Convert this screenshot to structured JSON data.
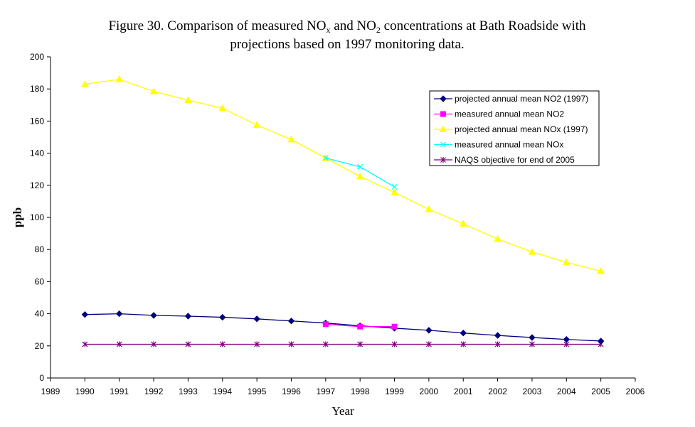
{
  "chart_data": {
    "type": "line",
    "title": {
      "line1_before": "Figure 30. Comparison of measured NO",
      "line1_sub1": "x",
      "line1_mid": " and NO",
      "line1_sub2": "2",
      "line1_after": " concentrations at Bath Roadside with",
      "line2": "projections based on 1997 monitoring data."
    },
    "xlabel": "Year",
    "ylabel": "ppb",
    "xlim": [
      1989,
      2006
    ],
    "ylim": [
      0,
      200
    ],
    "x_ticks": [
      1989,
      1990,
      1991,
      1992,
      1993,
      1994,
      1995,
      1996,
      1997,
      1998,
      1999,
      2000,
      2001,
      2002,
      2003,
      2004,
      2005,
      2006
    ],
    "y_ticks": [
      0,
      20,
      40,
      60,
      80,
      100,
      120,
      140,
      160,
      180,
      200
    ],
    "grid": false,
    "legend_position": "top-right",
    "series": [
      {
        "name": "projected annual mean NO2 (1997)",
        "color": "#000080",
        "marker": "diamond",
        "x": [
          1990,
          1991,
          1992,
          1993,
          1994,
          1995,
          1996,
          1997,
          1998,
          1999,
          2000,
          2001,
          2002,
          2003,
          2004,
          2005
        ],
        "values": [
          39.5,
          40,
          39,
          38.5,
          37.8,
          36.8,
          35.5,
          34.2,
          32.5,
          31,
          29.7,
          28,
          26.5,
          25.2,
          24,
          23
        ]
      },
      {
        "name": "measured annual mean NO2",
        "color": "#ff00ff",
        "marker": "square",
        "x": [
          1997,
          1998,
          1999
        ],
        "values": [
          33.5,
          32,
          32
        ]
      },
      {
        "name": "projected annual mean NOx (1997)",
        "color": "#ffff00",
        "marker": "triangle",
        "x": [
          1990,
          1991,
          1992,
          1993,
          1994,
          1995,
          1996,
          1997,
          1998,
          1999,
          2000,
          2001,
          2002,
          2003,
          2004,
          2005
        ],
        "values": [
          183,
          186,
          178.5,
          173,
          168,
          157.5,
          148.5,
          137,
          125.5,
          115.5,
          105,
          96,
          86.5,
          78.5,
          72,
          66.5
        ]
      },
      {
        "name": "measured annual mean NOx",
        "color": "#00ffff",
        "marker": "x",
        "x": [
          1997,
          1998,
          1999
        ],
        "values": [
          137,
          131.5,
          119
        ]
      },
      {
        "name": "NAQS objective for end of 2005",
        "color": "#800080",
        "marker": "star",
        "x": [
          1990,
          1991,
          1992,
          1993,
          1994,
          1995,
          1996,
          1997,
          1998,
          1999,
          2000,
          2001,
          2002,
          2003,
          2004,
          2005
        ],
        "values": [
          21,
          21,
          21,
          21,
          21,
          21,
          21,
          21,
          21,
          21,
          21,
          21,
          21,
          21,
          21,
          21
        ]
      }
    ]
  }
}
